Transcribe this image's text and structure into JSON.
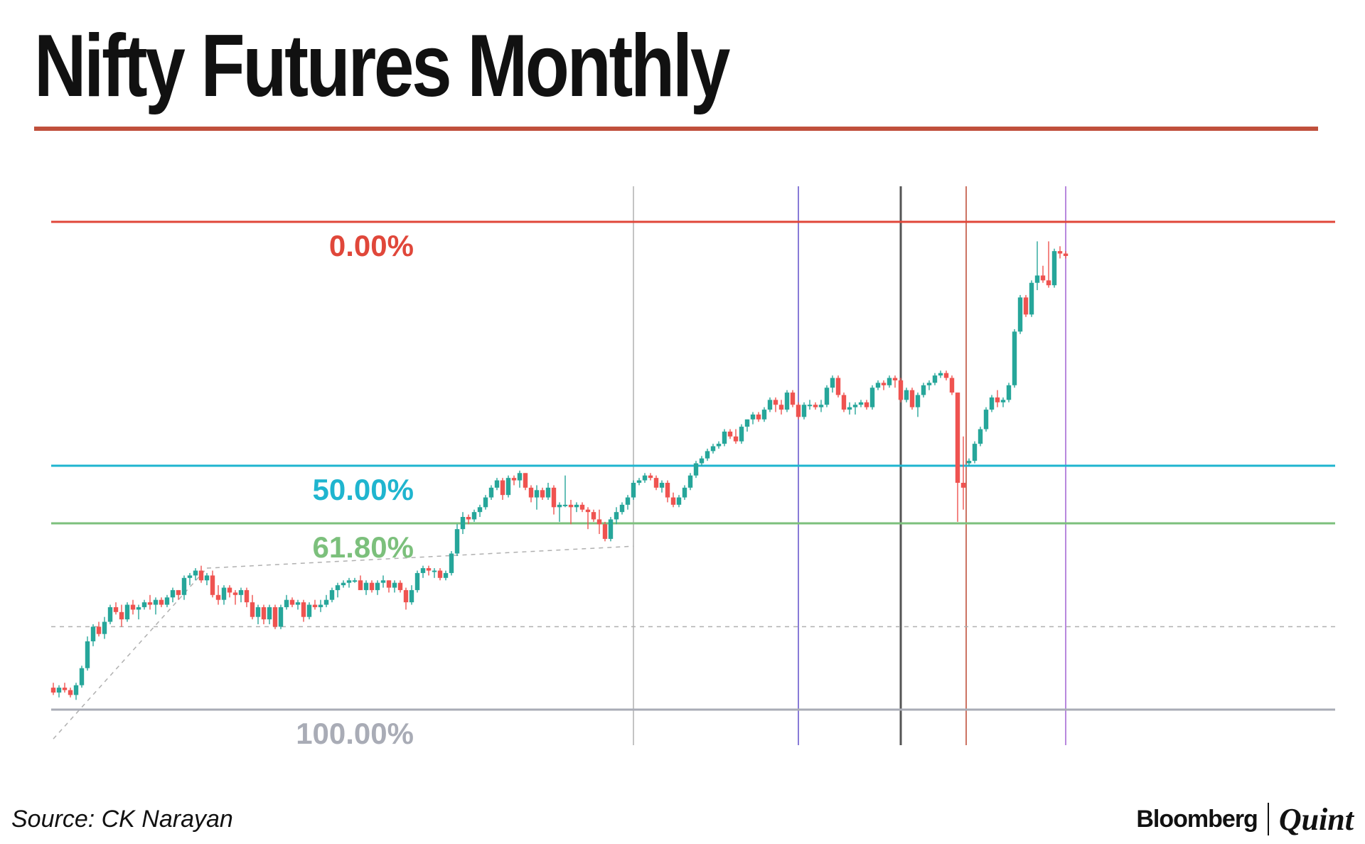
{
  "header": {
    "title": "Nifty Futures Monthly"
  },
  "footer": {
    "source": "Source: CK Narayan",
    "brand_primary": "Bloomberg",
    "brand_secondary": "Quint"
  },
  "colors": {
    "up_candle": "#26a69a",
    "down_candle": "#ef5350",
    "title_rule": "#c0503c",
    "level_0": "#e0473a",
    "level_50": "#1fb5cf",
    "level_618": "#7cc07c",
    "level_100": "#a9acb6"
  },
  "chart_data": {
    "type": "candlestick",
    "title": "Nifty Futures Monthly",
    "xlabel": "",
    "ylabel": "",
    "ylim": [
      0,
      100
    ],
    "x_axis_visible": false,
    "y_axis_visible": false,
    "grid": false,
    "legend": "none",
    "value_unit": "Fibonacci retracement scale (0.00% level = 100, 100.00% level = 0)",
    "fib_levels": [
      {
        "label": "0.00%",
        "value": 100.0,
        "color": "#e0473a"
      },
      {
        "label": "50.00%",
        "value": 50.0,
        "color": "#1fb5cf"
      },
      {
        "label": "61.80%",
        "value": 38.2,
        "color": "#7cc07c"
      },
      {
        "label": "100.00%",
        "value": 0.0,
        "color": "#a9acb6"
      }
    ],
    "reference_lines": [
      {
        "kind": "horizontal",
        "style": "dashed",
        "value": 17.0,
        "color": "#b0b0b0"
      }
    ],
    "trend_lines": [
      {
        "style": "dashed",
        "from": [
          0,
          -6.0
        ],
        "to": [
          27,
          29.0
        ],
        "color": "#b0b0b0"
      },
      {
        "style": "dashed",
        "from": [
          27,
          29.0
        ],
        "to": [
          102,
          33.5
        ],
        "color": "#b0b0b0"
      }
    ],
    "vertical_markers": [
      {
        "x": 102,
        "color": "#b5b5b5"
      },
      {
        "x": 131,
        "color": "#6a5acd"
      },
      {
        "x": 149,
        "color": "#555555"
      },
      {
        "x": 160.5,
        "color": "#c0503c"
      },
      {
        "x": 178,
        "color": "#a66bd6"
      }
    ],
    "candles": [
      [
        4.5,
        5.5,
        3.0,
        3.5
      ],
      [
        3.5,
        5.0,
        2.5,
        4.5
      ],
      [
        4.5,
        5.5,
        3.5,
        4.0
      ],
      [
        4.0,
        4.5,
        2.5,
        3.0
      ],
      [
        3.0,
        5.5,
        2.0,
        5.0
      ],
      [
        5.0,
        9.0,
        4.5,
        8.5
      ],
      [
        8.5,
        15.0,
        8.0,
        14.0
      ],
      [
        14.0,
        17.5,
        13.0,
        17.0
      ],
      [
        17.0,
        18.0,
        15.0,
        15.5
      ],
      [
        15.5,
        19.0,
        14.5,
        18.0
      ],
      [
        18.0,
        21.5,
        17.5,
        21.0
      ],
      [
        21.0,
        22.0,
        19.5,
        20.0
      ],
      [
        20.0,
        21.5,
        17.0,
        18.5
      ],
      [
        18.5,
        22.0,
        18.0,
        21.5
      ],
      [
        21.5,
        22.5,
        19.5,
        20.5
      ],
      [
        20.5,
        21.5,
        18.5,
        21.0
      ],
      [
        21.0,
        22.5,
        20.5,
        22.0
      ],
      [
        22.0,
        23.5,
        20.5,
        21.5
      ],
      [
        21.5,
        23.0,
        19.5,
        22.5
      ],
      [
        22.5,
        23.0,
        21.0,
        21.5
      ],
      [
        21.5,
        23.5,
        21.0,
        23.0
      ],
      [
        23.0,
        25.0,
        22.0,
        24.5
      ],
      [
        24.5,
        24.5,
        22.5,
        23.5
      ],
      [
        23.5,
        27.5,
        22.5,
        27.0
      ],
      [
        27.0,
        28.0,
        25.5,
        27.5
      ],
      [
        27.5,
        29.0,
        26.5,
        28.5
      ],
      [
        28.5,
        29.5,
        26.0,
        26.5
      ],
      [
        26.5,
        28.0,
        25.5,
        27.5
      ],
      [
        27.5,
        28.5,
        23.0,
        23.5
      ],
      [
        23.5,
        25.5,
        21.5,
        22.5
      ],
      [
        22.5,
        25.5,
        21.5,
        25.0
      ],
      [
        25.0,
        25.5,
        23.0,
        24.0
      ],
      [
        24.0,
        24.5,
        21.5,
        23.5
      ],
      [
        23.5,
        25.0,
        22.0,
        24.5
      ],
      [
        24.5,
        25.0,
        21.0,
        22.0
      ],
      [
        22.0,
        23.5,
        18.5,
        19.0
      ],
      [
        19.0,
        21.5,
        17.5,
        21.0
      ],
      [
        21.0,
        21.5,
        17.5,
        18.5
      ],
      [
        18.5,
        21.5,
        17.5,
        21.0
      ],
      [
        21.0,
        21.5,
        16.5,
        17.0
      ],
      [
        17.0,
        21.5,
        16.5,
        21.0
      ],
      [
        21.0,
        23.5,
        20.5,
        22.5
      ],
      [
        22.5,
        23.0,
        21.0,
        21.5
      ],
      [
        21.5,
        22.5,
        20.5,
        22.0
      ],
      [
        22.0,
        22.5,
        18.0,
        19.0
      ],
      [
        19.0,
        22.0,
        18.5,
        21.5
      ],
      [
        21.5,
        22.5,
        20.5,
        21.0
      ],
      [
        21.0,
        22.5,
        20.0,
        21.5
      ],
      [
        21.5,
        23.5,
        21.0,
        22.5
      ],
      [
        22.5,
        25.0,
        22.0,
        24.5
      ],
      [
        24.5,
        26.0,
        23.0,
        25.5
      ],
      [
        25.5,
        26.5,
        25.0,
        26.0
      ],
      [
        26.0,
        27.0,
        25.0,
        26.5
      ],
      [
        26.5,
        27.0,
        26.0,
        26.5
      ],
      [
        26.5,
        27.5,
        24.5,
        24.5
      ],
      [
        24.5,
        26.5,
        23.5,
        26.0
      ],
      [
        26.0,
        26.5,
        24.0,
        24.5
      ],
      [
        24.5,
        26.5,
        23.5,
        26.0
      ],
      [
        26.0,
        27.5,
        25.0,
        26.5
      ],
      [
        26.5,
        26.5,
        24.0,
        25.0
      ],
      [
        25.0,
        26.5,
        24.0,
        26.0
      ],
      [
        26.0,
        26.5,
        24.0,
        24.5
      ],
      [
        24.5,
        25.0,
        20.5,
        22.0
      ],
      [
        22.0,
        25.5,
        21.5,
        24.5
      ],
      [
        24.5,
        28.5,
        24.0,
        28.0
      ],
      [
        28.0,
        29.5,
        27.0,
        29.0
      ],
      [
        29.0,
        29.5,
        27.5,
        28.5
      ],
      [
        28.5,
        29.0,
        27.0,
        28.5
      ],
      [
        28.5,
        29.0,
        26.5,
        27.0
      ],
      [
        27.0,
        28.5,
        26.5,
        28.0
      ],
      [
        28.0,
        32.5,
        27.5,
        32.0
      ],
      [
        32.0,
        38.0,
        31.5,
        37.0
      ],
      [
        37.0,
        40.5,
        36.0,
        39.5
      ],
      [
        39.5,
        40.0,
        38.0,
        39.0
      ],
      [
        39.0,
        41.0,
        38.5,
        40.5
      ],
      [
        40.5,
        42.0,
        39.5,
        41.5
      ],
      [
        41.5,
        44.0,
        41.0,
        43.5
      ],
      [
        43.5,
        46.0,
        43.0,
        45.5
      ],
      [
        45.5,
        47.5,
        45.0,
        47.0
      ],
      [
        47.0,
        47.5,
        43.0,
        44.0
      ],
      [
        44.0,
        48.0,
        43.5,
        47.5
      ],
      [
        47.5,
        48.0,
        46.0,
        47.0
      ],
      [
        47.0,
        49.0,
        45.5,
        48.5
      ],
      [
        48.5,
        48.5,
        45.0,
        45.5
      ],
      [
        45.5,
        46.0,
        42.5,
        43.5
      ],
      [
        43.5,
        46.0,
        41.0,
        45.0
      ],
      [
        45.0,
        45.5,
        43.0,
        43.5
      ],
      [
        43.5,
        46.5,
        43.0,
        45.5
      ],
      [
        45.5,
        46.0,
        40.0,
        41.5
      ],
      [
        41.5,
        42.5,
        38.5,
        42.0
      ],
      [
        42.0,
        48.0,
        41.5,
        42.0
      ],
      [
        42.0,
        43.0,
        38.0,
        41.5
      ],
      [
        41.5,
        42.5,
        40.5,
        42.0
      ],
      [
        42.0,
        42.5,
        40.5,
        41.0
      ],
      [
        41.0,
        41.5,
        37.0,
        40.5
      ],
      [
        40.5,
        41.0,
        38.5,
        39.0
      ],
      [
        39.0,
        41.0,
        36.0,
        38.0
      ],
      [
        38.0,
        38.5,
        34.5,
        35.0
      ],
      [
        35.0,
        39.5,
        34.5,
        39.0
      ],
      [
        39.0,
        41.5,
        38.0,
        40.5
      ],
      [
        40.5,
        42.5,
        40.0,
        42.0
      ],
      [
        42.0,
        44.0,
        41.0,
        43.5
      ],
      [
        43.5,
        47.0,
        43.0,
        46.5
      ],
      [
        46.5,
        47.5,
        46.0,
        47.0
      ],
      [
        47.0,
        48.5,
        46.5,
        48.0
      ],
      [
        48.0,
        48.5,
        47.0,
        47.5
      ],
      [
        47.5,
        48.0,
        45.0,
        45.5
      ],
      [
        45.5,
        47.0,
        44.5,
        46.5
      ],
      [
        46.5,
        47.0,
        42.5,
        43.5
      ],
      [
        43.5,
        44.5,
        41.5,
        42.0
      ],
      [
        42.0,
        44.0,
        41.5,
        43.5
      ],
      [
        43.5,
        46.0,
        43.0,
        45.5
      ],
      [
        45.5,
        48.5,
        45.0,
        48.0
      ],
      [
        48.0,
        51.0,
        47.5,
        50.5
      ],
      [
        50.5,
        52.0,
        50.0,
        51.5
      ],
      [
        51.5,
        53.5,
        51.0,
        53.0
      ],
      [
        53.0,
        54.5,
        52.5,
        54.0
      ],
      [
        54.0,
        55.0,
        53.5,
        54.5
      ],
      [
        54.5,
        57.5,
        54.0,
        57.0
      ],
      [
        57.0,
        57.5,
        55.5,
        56.0
      ],
      [
        56.0,
        57.5,
        54.5,
        55.0
      ],
      [
        55.0,
        58.5,
        54.5,
        58.0
      ],
      [
        58.0,
        59.5,
        57.0,
        59.5
      ],
      [
        59.5,
        61.0,
        58.5,
        60.5
      ],
      [
        60.5,
        61.0,
        59.0,
        59.5
      ],
      [
        59.5,
        62.0,
        59.0,
        61.5
      ],
      [
        61.5,
        64.0,
        61.0,
        63.5
      ],
      [
        63.5,
        64.0,
        61.0,
        62.5
      ],
      [
        62.5,
        63.5,
        60.5,
        61.5
      ],
      [
        61.5,
        65.5,
        61.0,
        65.0
      ],
      [
        65.0,
        65.5,
        62.0,
        62.5
      ],
      [
        62.5,
        63.0,
        59.5,
        60.0
      ],
      [
        60.0,
        63.0,
        59.5,
        62.5
      ],
      [
        62.5,
        63.5,
        61.5,
        62.5
      ],
      [
        62.5,
        63.0,
        61.5,
        62.0
      ],
      [
        62.0,
        63.5,
        61.0,
        62.5
      ],
      [
        62.5,
        66.5,
        62.0,
        66.0
      ],
      [
        66.0,
        68.5,
        65.0,
        68.0
      ],
      [
        68.0,
        68.5,
        64.0,
        64.5
      ],
      [
        64.5,
        65.0,
        61.0,
        61.5
      ],
      [
        61.5,
        63.0,
        60.5,
        62.0
      ],
      [
        62.0,
        63.0,
        60.5,
        62.5
      ],
      [
        62.5,
        63.5,
        62.0,
        63.0
      ],
      [
        63.0,
        63.5,
        61.5,
        62.0
      ],
      [
        62.0,
        66.5,
        61.5,
        66.0
      ],
      [
        66.0,
        67.5,
        65.5,
        67.0
      ],
      [
        67.0,
        67.5,
        65.5,
        66.5
      ],
      [
        66.5,
        68.5,
        66.0,
        68.0
      ],
      [
        68.0,
        68.5,
        66.0,
        67.5
      ],
      [
        67.5,
        68.0,
        63.0,
        63.5
      ],
      [
        63.5,
        66.0,
        63.0,
        65.5
      ],
      [
        65.5,
        66.0,
        61.5,
        62.0
      ],
      [
        62.0,
        65.0,
        60.0,
        64.5
      ],
      [
        64.5,
        67.0,
        64.0,
        66.5
      ],
      [
        66.5,
        67.5,
        65.5,
        67.0
      ],
      [
        67.0,
        69.0,
        66.5,
        68.5
      ],
      [
        68.5,
        69.5,
        68.0,
        69.0
      ],
      [
        69.0,
        69.5,
        67.5,
        68.0
      ],
      [
        68.0,
        68.5,
        64.5,
        65.0
      ],
      [
        65.0,
        65.0,
        38.5,
        46.5
      ],
      [
        46.5,
        56.0,
        41.0,
        45.5
      ],
      [
        50.5,
        51.5,
        50.0,
        51.0
      ],
      [
        51.0,
        55.0,
        50.5,
        54.5
      ],
      [
        54.5,
        58.0,
        54.0,
        57.5
      ],
      [
        57.5,
        62.0,
        57.0,
        61.5
      ],
      [
        61.5,
        64.5,
        61.0,
        64.0
      ],
      [
        64.0,
        65.5,
        62.0,
        63.0
      ],
      [
        63.0,
        64.0,
        62.0,
        63.5
      ],
      [
        63.5,
        67.0,
        63.0,
        66.5
      ],
      [
        66.5,
        78.0,
        66.0,
        77.5
      ],
      [
        77.5,
        85.0,
        77.0,
        84.5
      ],
      [
        84.5,
        85.0,
        80.5,
        81.0
      ],
      [
        81.0,
        88.0,
        80.5,
        87.5
      ],
      [
        87.5,
        96.0,
        86.0,
        89.0
      ],
      [
        89.0,
        91.0,
        87.5,
        88.0
      ],
      [
        88.0,
        96.0,
        86.5,
        87.0
      ],
      [
        87.0,
        94.5,
        86.5,
        94.0
      ],
      [
        94.0,
        95.0,
        92.5,
        93.5
      ],
      [
        93.5,
        94.0,
        92.5,
        93.0
      ]
    ]
  }
}
